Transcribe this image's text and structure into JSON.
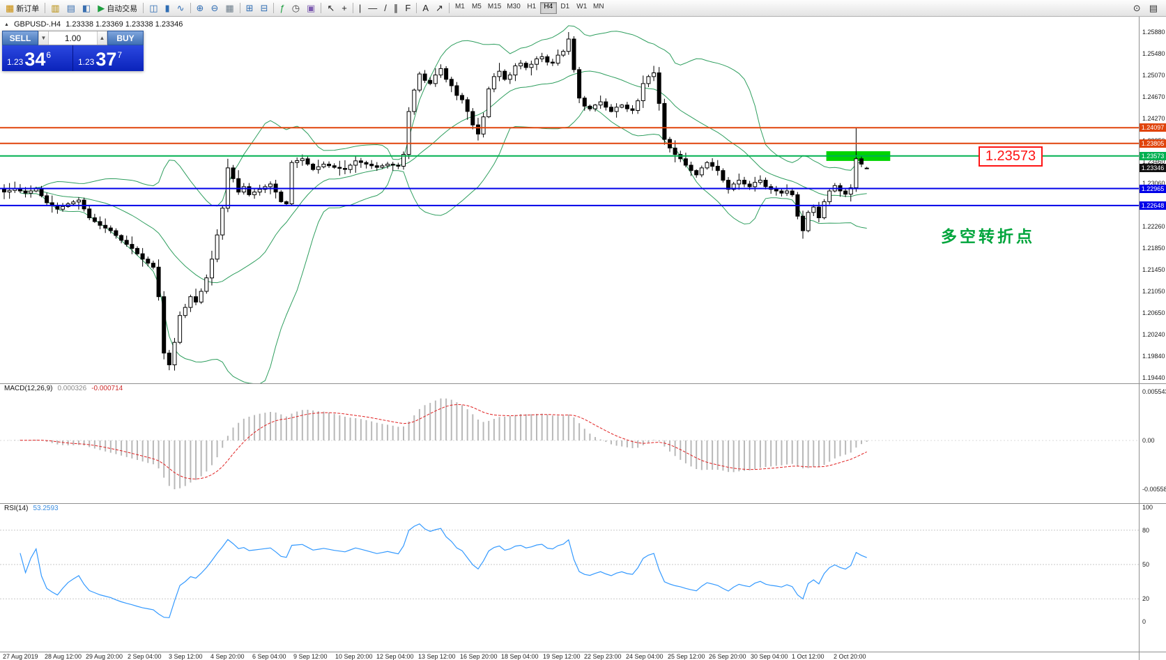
{
  "toolbar": {
    "groups": [
      {
        "items": [
          {
            "name": "new-order-button",
            "glyph": "▦",
            "color": "#c98a00",
            "label": "新订单"
          }
        ]
      },
      {
        "items": [
          {
            "name": "chart-profile-button",
            "glyph": "▥",
            "color": "#b58900"
          },
          {
            "name": "market-watch-button",
            "glyph": "▤",
            "color": "#3a6fb0"
          },
          {
            "name": "data-window-button",
            "glyph": "◧",
            "color": "#3a6fb0"
          },
          {
            "name": "autotrading-button",
            "glyph": "▶",
            "color": "#1d9e3f",
            "label": "自动交易"
          }
        ]
      },
      {
        "items": [
          {
            "name": "bar-chart-button",
            "glyph": "◫",
            "color": "#2f6db3"
          },
          {
            "name": "candlestick-chart-button",
            "glyph": "▮",
            "color": "#2f6db3"
          },
          {
            "name": "line-chart-button",
            "glyph": "∿",
            "color": "#2f6db3"
          }
        ]
      },
      {
        "items": [
          {
            "name": "zoom-in-button",
            "glyph": "⊕",
            "color": "#2f6db3"
          },
          {
            "name": "zoom-out-button",
            "glyph": "⊖",
            "color": "#2f6db3"
          },
          {
            "name": "grid-button",
            "glyph": "▦",
            "color": "#6d7d8a"
          }
        ]
      },
      {
        "items": [
          {
            "name": "tile-windows-button",
            "glyph": "⊞",
            "color": "#2f6db3"
          },
          {
            "name": "cascade-windows-button",
            "glyph": "⊟",
            "color": "#2f6db3"
          }
        ]
      },
      {
        "items": [
          {
            "name": "indicators-button",
            "glyph": "ƒ",
            "color": "#1d9e3f"
          },
          {
            "name": "periods-button",
            "glyph": "◷",
            "color": "#444444"
          },
          {
            "name": "templates-button",
            "glyph": "▣",
            "color": "#7d5bb0"
          }
        ]
      },
      {
        "items": [
          {
            "name": "cursor-button",
            "glyph": "↖",
            "color": "#222222"
          },
          {
            "name": "crosshair-button",
            "glyph": "+",
            "color": "#222222"
          }
        ]
      },
      {
        "items": [
          {
            "name": "vertical-line-button",
            "glyph": "|",
            "color": "#222222"
          },
          {
            "name": "horizontal-line-button",
            "glyph": "—",
            "color": "#222222"
          },
          {
            "name": "trendline-button",
            "glyph": "/",
            "color": "#222222"
          },
          {
            "name": "channel-button",
            "glyph": "∥",
            "color": "#222222"
          },
          {
            "name": "fibonacci-button",
            "glyph": "F",
            "color": "#222222"
          }
        ]
      },
      {
        "items": [
          {
            "name": "text-label-button",
            "glyph": "A",
            "color": "#222222"
          },
          {
            "name": "arrow-tools-button",
            "glyph": "↗",
            "color": "#222222"
          }
        ]
      }
    ],
    "timeframes": [
      "M1",
      "M5",
      "M15",
      "M30",
      "H1",
      "H4",
      "D1",
      "W1",
      "MN"
    ],
    "active_timeframe": "H4",
    "right_items": [
      {
        "name": "search-button",
        "glyph": "⊙",
        "color": "#333333"
      },
      {
        "name": "chat-button",
        "glyph": "▤",
        "color": "#333333"
      }
    ]
  },
  "chart_header": {
    "collapse_glyph": "▲",
    "symbol": "GBPUSD-.H4",
    "ohlc": "1.23338 1.23369 1.23338 1.23346"
  },
  "trade_panel": {
    "sell_label": "SELL",
    "buy_label": "BUY",
    "volume": "1.00",
    "spinner_down_glyph": "▼",
    "spinner_up_glyph": "▲",
    "bid": {
      "prefix": "1.23",
      "big": "34",
      "sup": "6"
    },
    "ask": {
      "prefix": "1.23",
      "big": "37",
      "sup": "7"
    }
  },
  "chart_data": {
    "type": "candlestick",
    "symbol": "GBPUSD-",
    "timeframe": "H4",
    "current_ohlc": {
      "o": 1.23338,
      "h": 1.23369,
      "l": 1.23338,
      "c": 1.23346
    },
    "price_anchors": [
      [
        0,
        1.229
      ],
      [
        2,
        1.2296
      ],
      [
        4,
        1.2288
      ],
      [
        6,
        1.2296
      ],
      [
        8,
        1.227
      ],
      [
        10,
        1.2258
      ],
      [
        12,
        1.2268
      ],
      [
        14,
        1.2275
      ],
      [
        16,
        1.2242
      ],
      [
        18,
        1.2228
      ],
      [
        20,
        1.2218
      ],
      [
        22,
        1.22
      ],
      [
        24,
        1.2185
      ],
      [
        26,
        1.2165
      ],
      [
        28,
        1.215
      ],
      [
        29,
        1.2095
      ],
      [
        30,
        1.199
      ],
      [
        31,
        1.1968
      ],
      [
        32,
        1.201
      ],
      [
        33,
        1.206
      ],
      [
        34,
        1.2075
      ],
      [
        35,
        1.2095
      ],
      [
        36,
        1.2085
      ],
      [
        37,
        1.2105
      ],
      [
        38,
        1.213
      ],
      [
        39,
        1.2165
      ],
      [
        40,
        1.221
      ],
      [
        41,
        1.226
      ],
      [
        42,
        1.2335
      ],
      [
        43,
        1.2315
      ],
      [
        44,
        1.229
      ],
      [
        45,
        1.23
      ],
      [
        46,
        1.2285
      ],
      [
        48,
        1.2295
      ],
      [
        50,
        1.2305
      ],
      [
        51,
        1.229
      ],
      [
        52,
        1.2272
      ],
      [
        53,
        1.2268
      ],
      [
        54,
        1.2345
      ],
      [
        56,
        1.2352
      ],
      [
        58,
        1.2332
      ],
      [
        60,
        1.2342
      ],
      [
        62,
        1.2336
      ],
      [
        64,
        1.2332
      ],
      [
        66,
        1.2348
      ],
      [
        68,
        1.2342
      ],
      [
        70,
        1.2336
      ],
      [
        72,
        1.2342
      ],
      [
        74,
        1.2338
      ],
      [
        75,
        1.236
      ],
      [
        76,
        1.244
      ],
      [
        77,
        1.248
      ],
      [
        78,
        1.251
      ],
      [
        79,
        1.2498
      ],
      [
        80,
        1.2492
      ],
      [
        81,
        1.2508
      ],
      [
        82,
        1.252
      ],
      [
        83,
        1.25
      ],
      [
        84,
        1.2488
      ],
      [
        85,
        1.247
      ],
      [
        86,
        1.2462
      ],
      [
        87,
        1.244
      ],
      [
        88,
        1.2415
      ],
      [
        89,
        1.2398
      ],
      [
        90,
        1.243
      ],
      [
        91,
        1.2482
      ],
      [
        92,
        1.2505
      ],
      [
        93,
        1.2515
      ],
      [
        94,
        1.25
      ],
      [
        95,
        1.2508
      ],
      [
        96,
        1.2525
      ],
      [
        97,
        1.253
      ],
      [
        98,
        1.2522
      ],
      [
        99,
        1.2528
      ],
      [
        100,
        1.2538
      ],
      [
        101,
        1.2542
      ],
      [
        102,
        1.2532
      ],
      [
        103,
        1.253
      ],
      [
        104,
        1.2545
      ],
      [
        105,
        1.2552
      ],
      [
        106,
        1.2575
      ],
      [
        107,
        1.2518
      ],
      [
        108,
        1.2465
      ],
      [
        109,
        1.245
      ],
      [
        110,
        1.2445
      ],
      [
        111,
        1.2452
      ],
      [
        112,
        1.2458
      ],
      [
        113,
        1.2448
      ],
      [
        114,
        1.244
      ],
      [
        115,
        1.2448
      ],
      [
        116,
        1.2452
      ],
      [
        117,
        1.2445
      ],
      [
        118,
        1.2442
      ],
      [
        119,
        1.246
      ],
      [
        120,
        1.2492
      ],
      [
        121,
        1.2505
      ],
      [
        122,
        1.2512
      ],
      [
        123,
        1.2455
      ],
      [
        124,
        1.2388
      ],
      [
        125,
        1.2372
      ],
      [
        126,
        1.236
      ],
      [
        127,
        1.2352
      ],
      [
        128,
        1.234
      ],
      [
        129,
        1.233
      ],
      [
        130,
        1.2322
      ],
      [
        131,
        1.2335
      ],
      [
        132,
        1.2345
      ],
      [
        133,
        1.2338
      ],
      [
        134,
        1.233
      ],
      [
        135,
        1.2312
      ],
      [
        136,
        1.2295
      ],
      [
        137,
        1.2305
      ],
      [
        138,
        1.2312
      ],
      [
        139,
        1.2305
      ],
      [
        140,
        1.23
      ],
      [
        141,
        1.2308
      ],
      [
        142,
        1.2312
      ],
      [
        143,
        1.23
      ],
      [
        144,
        1.2295
      ],
      [
        145,
        1.2292
      ],
      [
        146,
        1.2288
      ],
      [
        147,
        1.2292
      ],
      [
        148,
        1.2285
      ],
      [
        149,
        1.2245
      ],
      [
        150,
        1.2218
      ],
      [
        151,
        1.2252
      ],
      [
        152,
        1.2262
      ],
      [
        153,
        1.2242
      ],
      [
        154,
        1.2272
      ],
      [
        155,
        1.2292
      ],
      [
        156,
        1.2302
      ],
      [
        157,
        1.2292
      ],
      [
        158,
        1.2286
      ],
      [
        159,
        1.2298
      ],
      [
        160,
        1.2352
      ],
      [
        161,
        1.2342
      ],
      [
        162,
        1.23346
      ]
    ],
    "wick_overrides": {
      "31": {
        "low": 1.1958
      },
      "42": {
        "high": 1.2352
      },
      "89": {
        "low": 1.2386
      },
      "106": {
        "high": 1.2588
      },
      "122": {
        "high": 1.2519
      },
      "150": {
        "low": 1.2203
      },
      "160": {
        "high": 1.2409
      }
    },
    "y_axis_labels": [
      "1.25880",
      "1.25480",
      "1.25070",
      "1.24670",
      "1.24270",
      "1.23850",
      "1.23460",
      "1.23060",
      "1.22660",
      "1.22260",
      "1.21850",
      "1.21450",
      "1.21050",
      "1.20650",
      "1.20240",
      "1.19840",
      "1.19440"
    ],
    "x_axis_labels": [
      "27 Aug 2019",
      "28 Aug 12:00",
      "29 Aug 20:00",
      "2 Sep 04:00",
      "3 Sep 12:00",
      "4 Sep 20:00",
      "6 Sep 04:00",
      "9 Sep 12:00",
      "10 Sep 20:00",
      "12 Sep 04:00",
      "13 Sep 12:00",
      "16 Sep 20:00",
      "18 Sep 04:00",
      "19 Sep 12:00",
      "22 Sep 23:00",
      "24 Sep 04:00",
      "25 Sep 12:00",
      "26 Sep 20:00",
      "30 Sep 04:00",
      "1 Oct 12:00",
      "2 Oct 20:00"
    ],
    "hlines": [
      {
        "price": 1.24097,
        "color": "#e0440c"
      },
      {
        "price": 1.23805,
        "color": "#e0440c"
      },
      {
        "price": 1.23573,
        "color": "#00b050"
      },
      {
        "price": 1.22965,
        "color": "#0000e8"
      },
      {
        "price": 1.22648,
        "color": "#0000e8"
      }
    ],
    "price_badges": [
      {
        "text": "1.24097",
        "color": "#e0440c"
      },
      {
        "text": "1.23805",
        "color": "#e0440c"
      },
      {
        "text": "1.23573",
        "color": "#00b050"
      },
      {
        "text": "1.23346",
        "color": "#111111"
      },
      {
        "text": "1.22965",
        "color": "#0000e8"
      },
      {
        "text": "1.22648",
        "color": "#0000e8"
      }
    ],
    "highlight_rect": {
      "i1": 154.4,
      "i2": 166.4,
      "price_top": 1.2366,
      "price_bottom": 1.2348,
      "color": "#00d400"
    },
    "candle_colors": {
      "bull": "#ffffff",
      "bear": "#000000",
      "outline": "#000000"
    },
    "bollinger_color": "#2e9e5e",
    "indicators": {
      "macd": {
        "name": "MACD(12,26,9)",
        "value_main": "0.000326",
        "value_signal": "-0.000714",
        "axis_labels": [
          "0.005543",
          "0.00",
          "-0.005583"
        ],
        "histogram_color": "#b8b8b8",
        "signal_color": "#e02020"
      },
      "rsi": {
        "name": "RSI(14)",
        "value": "53.2593",
        "axis_labels": [
          "100",
          "80",
          "50",
          "20",
          "0"
        ],
        "levels": [
          80,
          50,
          20
        ],
        "line_color": "#3399ff",
        "level_color": "#c9c9c9"
      }
    },
    "annotation": {
      "text": "多空转折点",
      "color": "#00a53c"
    },
    "callout": {
      "text": "1.23573",
      "color": "#fe1414"
    }
  }
}
